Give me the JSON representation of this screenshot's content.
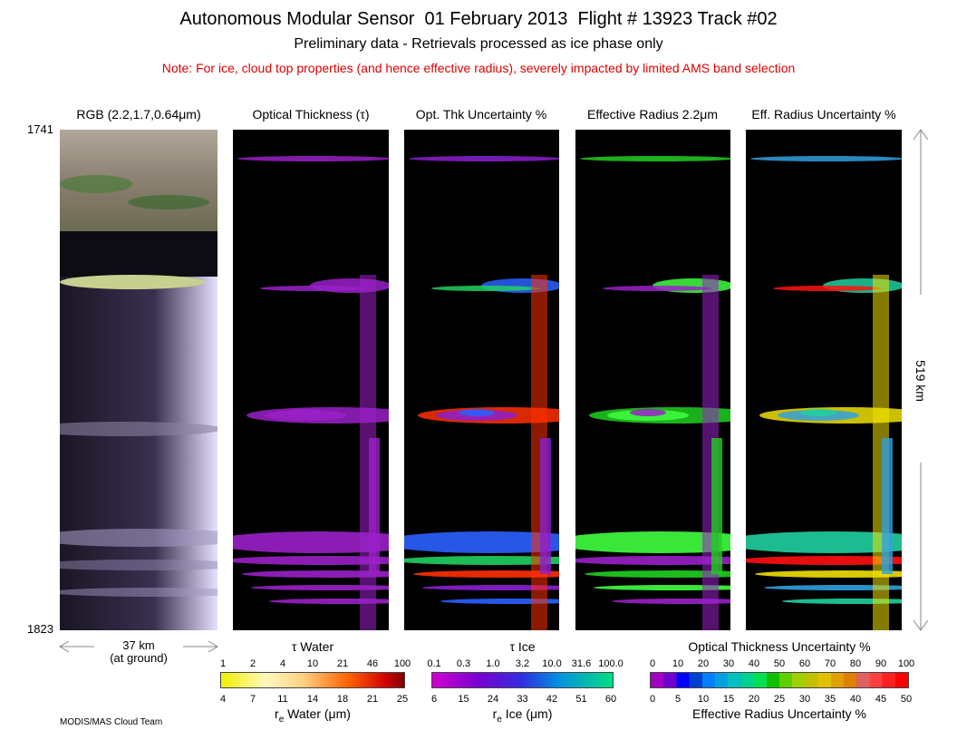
{
  "header": {
    "title": "Autonomous Modular Sensor  01 February 2013  Flight # 13923 Track #02",
    "subtitle": "Preliminary data - Retrievals processed as ice phase only",
    "note": "Note: For ice, cloud top properties (and hence effective radius), severely impacted by limited AMS band selection"
  },
  "panels": [
    {
      "title": "RGB (2.2,1.7,0.64μm)"
    },
    {
      "title": "Optical Thickness (τ)"
    },
    {
      "title": "Opt. Thk Uncertainty %"
    },
    {
      "title": "Effective Radius 2.2μm"
    },
    {
      "title": "Eff. Radius Uncertainty %"
    }
  ],
  "time_labels": {
    "start": "1741",
    "end": "1823"
  },
  "scale": {
    "width": "37 km",
    "width_note": "(at ground)",
    "length": "519 km"
  },
  "colorbars": [
    {
      "title": "τ Water",
      "top_ticks": [
        "1",
        "2",
        "4",
        "10",
        "21",
        "46",
        "100"
      ],
      "bottom_ticks": [
        "4",
        "7",
        "11",
        "14",
        "18",
        "21",
        "25"
      ],
      "label_symbol": "r",
      "label_subscript": "e",
      "label": " Water (μm)"
    },
    {
      "title": "τ Ice",
      "top_ticks": [
        "0.1",
        "0.3",
        "1.0",
        "3.2",
        "10.0",
        "31.6",
        "100.0"
      ],
      "bottom_ticks": [
        "6",
        "15",
        "24",
        "33",
        "42",
        "51",
        "60"
      ],
      "label_symbol": "r",
      "label_subscript": "e",
      "label": " Ice (μm)"
    },
    {
      "title": "Optical Thickness Uncertainty %",
      "top_ticks": [
        "0",
        "10",
        "20",
        "30",
        "40",
        "50",
        "60",
        "70",
        "80",
        "90",
        "100"
      ],
      "bottom_ticks": [
        "0",
        "5",
        "10",
        "15",
        "20",
        "25",
        "30",
        "35",
        "40",
        "45",
        "50"
      ],
      "label": "Effective Radius Uncertainty %"
    }
  ],
  "footer": "MODIS/MAS Cloud Team"
}
